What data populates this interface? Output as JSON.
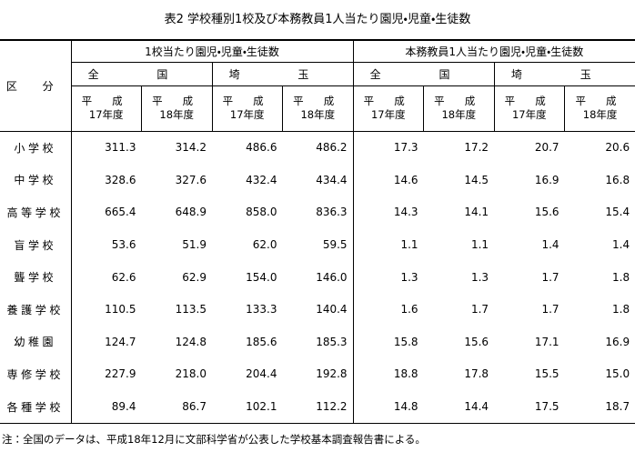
{
  "title": "表2 学校種別1校及び本務教員1人当たり園児・児童・生徒数",
  "header": {
    "corner": "区 分",
    "groups": [
      "1校当たり園児・児童・生徒数",
      "本務教員1人当たり園児・児童・生徒数"
    ],
    "regions": [
      "全 国",
      "埼 玉",
      "全 国",
      "埼 玉"
    ],
    "years": [
      {
        "era": "平 成",
        "year": "17年度"
      },
      {
        "era": "平 成",
        "year": "18年度"
      },
      {
        "era": "平 成",
        "year": "17年度"
      },
      {
        "era": "平 成",
        "year": "18年度"
      },
      {
        "era": "平 成",
        "year": "17年度"
      },
      {
        "era": "平 成",
        "year": "18年度"
      },
      {
        "era": "平 成",
        "year": "17年度"
      },
      {
        "era": "平 成",
        "year": "18年度"
      }
    ]
  },
  "table": {
    "rows": [
      [
        "小学校",
        "311.3",
        "314.2",
        "486.6",
        "486.2",
        "17.3",
        "17.2",
        "20.7",
        "20.6"
      ],
      [
        "中学校",
        "328.6",
        "327.6",
        "432.4",
        "434.4",
        "14.6",
        "14.5",
        "16.9",
        "16.8"
      ],
      [
        "高等学校",
        "665.4",
        "648.9",
        "858.0",
        "836.3",
        "14.3",
        "14.1",
        "15.6",
        "15.4"
      ],
      [
        "盲学校",
        "53.6",
        "51.9",
        "62.0",
        "59.5",
        "1.1",
        "1.1",
        "1.4",
        "1.4"
      ],
      [
        "聾学校",
        "62.6",
        "62.9",
        "154.0",
        "146.0",
        "1.3",
        "1.3",
        "1.7",
        "1.8"
      ],
      [
        "養護学校",
        "110.5",
        "113.5",
        "133.3",
        "140.4",
        "1.6",
        "1.7",
        "1.7",
        "1.8"
      ],
      [
        "幼稚園",
        "124.7",
        "124.8",
        "185.6",
        "185.3",
        "15.8",
        "15.6",
        "17.1",
        "16.9"
      ],
      [
        "専修学校",
        "227.9",
        "218.0",
        "204.4",
        "192.8",
        "18.8",
        "17.8",
        "15.5",
        "15.0"
      ],
      [
        "各種学校",
        "89.4",
        "86.7",
        "102.1",
        "112.2",
        "14.8",
        "14.4",
        "17.5",
        "18.7"
      ]
    ]
  },
  "note": "注：全国のデータは、平成18年12月に文部科学省が公表した学校基本調査報告書による。"
}
